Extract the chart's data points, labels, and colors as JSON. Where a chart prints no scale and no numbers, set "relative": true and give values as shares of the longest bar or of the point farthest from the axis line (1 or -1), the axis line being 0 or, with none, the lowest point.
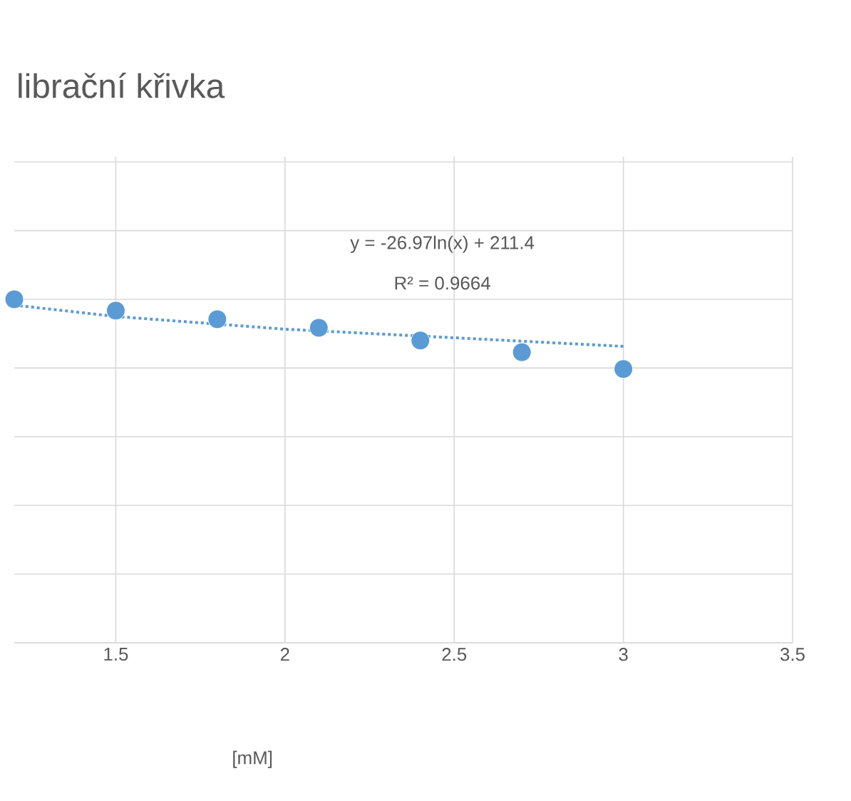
{
  "chart_data": {
    "type": "scatter",
    "title": "librační křivka",
    "xlabel": "[mM]",
    "relative": true,
    "series": [
      {
        "color": "#5b9bd5",
        "marker": "circle",
        "x": [
          1.2,
          1.5,
          1.8,
          2.1,
          2.4,
          2.7,
          3.0
        ],
        "values": [
          1,
          0.967,
          0.942,
          0.917,
          0.88,
          0.846,
          0.797
        ]
      },
      {
        "type": "line",
        "color": "#5b9bd5",
        "line_style": "dotted",
        "marker": "none",
        "x": [
          1.2,
          1.5,
          2.0,
          2.5,
          3.0
        ],
        "values": [
          0.983,
          0.95,
          0.913,
          0.888,
          0.863
        ]
      }
    ],
    "xlim": [
      1.2,
      3.5
    ],
    "xticks": [
      1.5,
      2,
      2.5,
      3,
      3.5
    ],
    "grid": true,
    "annotations": [
      "y = -26.97ln(x) + 211.4",
      "R² = 0.9664"
    ]
  }
}
